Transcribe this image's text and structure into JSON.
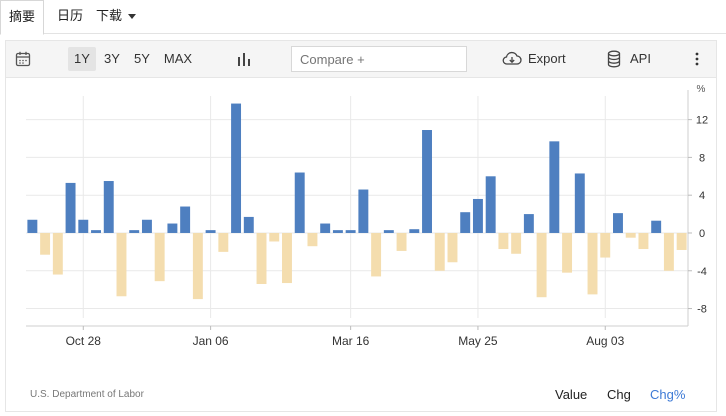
{
  "tabs": [
    {
      "label": "摘要",
      "active": true
    },
    {
      "label": "日历",
      "active": false
    },
    {
      "label": "下载",
      "active": false,
      "has_dropdown": true
    }
  ],
  "toolbar": {
    "ranges": [
      {
        "label": "1Y",
        "selected": true
      },
      {
        "label": "3Y",
        "selected": false
      },
      {
        "label": "5Y",
        "selected": false
      },
      {
        "label": "MAX",
        "selected": false
      }
    ],
    "compare_placeholder": "Compare +",
    "export_label": "Export",
    "api_label": "API"
  },
  "footer": {
    "source": "U.S. Department of Labor",
    "options": [
      {
        "label": "Value",
        "active": false
      },
      {
        "label": "Chg",
        "active": false
      },
      {
        "label": "Chg%",
        "active": true
      }
    ]
  },
  "colors": {
    "positive": "#4e7fc0",
    "negative": "#f4ddae",
    "active_link": "#3d7ad6"
  },
  "chart_data": {
    "type": "bar",
    "unit_label": "%",
    "y_ticks": [
      12,
      8,
      4,
      0,
      -4,
      -8
    ],
    "ylim": [
      -9,
      14.5
    ],
    "x_tick_labels": [
      "Oct 28",
      "Jan 06",
      "Mar 16",
      "May 25",
      "Aug 03"
    ],
    "x_tick_bar_index": [
      4,
      14,
      25,
      35,
      45
    ],
    "grid": true,
    "values": [
      1.4,
      -2.3,
      -4.4,
      5.3,
      1.4,
      0.3,
      5.5,
      -6.7,
      0.3,
      1.4,
      -5.1,
      1.0,
      2.8,
      -7.0,
      0.3,
      -2.0,
      13.7,
      1.7,
      -5.4,
      -0.9,
      -5.3,
      6.4,
      -1.4,
      1.0,
      0.3,
      0.3,
      4.6,
      -4.6,
      0.3,
      -1.9,
      0.4,
      10.9,
      -4.0,
      -3.1,
      2.2,
      3.6,
      6.0,
      -1.7,
      -2.2,
      2.0,
      -6.8,
      9.7,
      -4.2,
      6.3,
      -6.5,
      -2.6,
      2.1,
      -0.5,
      -1.7,
      1.3,
      -4.0,
      -1.8
    ]
  }
}
